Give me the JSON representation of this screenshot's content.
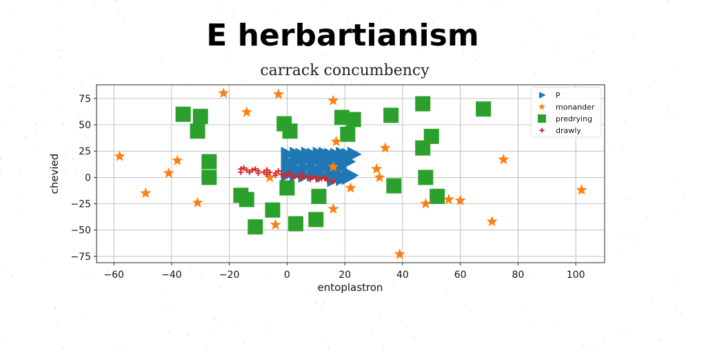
{
  "chart_data": {
    "type": "scatter",
    "title": "E herbartianism",
    "subtitle": "carrack concumbency",
    "xlabel": "entoplastron",
    "ylabel": "chevied",
    "xlim": [
      -66,
      110
    ],
    "ylim": [
      -81,
      88
    ],
    "xticks": [
      "−60",
      "−40",
      "−20",
      "0",
      "20",
      "40",
      "60",
      "80",
      "100"
    ],
    "yticks": [
      "−75",
      "−50",
      "−25",
      "0",
      "25",
      "50",
      "75"
    ],
    "grid": true,
    "legend_position": "top-right",
    "series": [
      {
        "name": "P",
        "marker": "triangle-right",
        "color": "#1f77b4",
        "points": [
          [
            0,
            22
          ],
          [
            3,
            22
          ],
          [
            5,
            21
          ],
          [
            7,
            22
          ],
          [
            9,
            21
          ],
          [
            11,
            22
          ],
          [
            13,
            22
          ],
          [
            15,
            21
          ],
          [
            17,
            21
          ],
          [
            19,
            22
          ],
          [
            21,
            21
          ],
          [
            23,
            22
          ],
          [
            0,
            15
          ],
          [
            3,
            15
          ],
          [
            6,
            16
          ],
          [
            9,
            15
          ],
          [
            12,
            15
          ],
          [
            15,
            14
          ],
          [
            18,
            15
          ],
          [
            21,
            15
          ],
          [
            0,
            9
          ],
          [
            3,
            8
          ],
          [
            6,
            9
          ],
          [
            9,
            8
          ],
          [
            12,
            9
          ],
          [
            15,
            8
          ],
          [
            18,
            9
          ],
          [
            0,
            3
          ],
          [
            3,
            3
          ],
          [
            6,
            2
          ],
          [
            9,
            3
          ],
          [
            12,
            2
          ],
          [
            15,
            3
          ],
          [
            18,
            2
          ],
          [
            21,
            2
          ],
          [
            16,
            -2
          ],
          [
            19,
            -1
          ],
          [
            21,
            0
          ],
          [
            22,
            2
          ]
        ]
      },
      {
        "name": "monander",
        "marker": "star",
        "color": "#ff7f0e",
        "points": [
          [
            -22,
            80
          ],
          [
            -3,
            79
          ],
          [
            16,
            73
          ],
          [
            -14,
            62
          ],
          [
            -58,
            20
          ],
          [
            -38,
            16
          ],
          [
            -41,
            4
          ],
          [
            -49,
            -15
          ],
          [
            -31,
            -24
          ],
          [
            17,
            34
          ],
          [
            34,
            28
          ],
          [
            31,
            8
          ],
          [
            32,
            0
          ],
          [
            16,
            10
          ],
          [
            -6,
            0
          ],
          [
            22,
            -10
          ],
          [
            16,
            -30
          ],
          [
            -4,
            -45
          ],
          [
            39,
            -73
          ],
          [
            48,
            -25
          ],
          [
            56,
            -21
          ],
          [
            60,
            -22
          ],
          [
            71,
            -42
          ],
          [
            75,
            17
          ],
          [
            102,
            -12
          ]
        ]
      },
      {
        "name": "predrying",
        "marker": "square",
        "color": "#2ca02c",
        "points": [
          [
            -36,
            60
          ],
          [
            -30,
            58
          ],
          [
            -31,
            44
          ],
          [
            -27,
            15
          ],
          [
            -27,
            0
          ],
          [
            -16,
            -17
          ],
          [
            -14,
            -21
          ],
          [
            -11,
            -47
          ],
          [
            -1,
            51
          ],
          [
            1,
            44
          ],
          [
            0,
            -10
          ],
          [
            -5,
            -31
          ],
          [
            3,
            -44
          ],
          [
            10,
            -40
          ],
          [
            11,
            -18
          ],
          [
            19,
            57
          ],
          [
            23,
            55
          ],
          [
            21,
            41
          ],
          [
            36,
            59
          ],
          [
            37,
            -8
          ],
          [
            47,
            70
          ],
          [
            47,
            28
          ],
          [
            50,
            39
          ],
          [
            48,
            0
          ],
          [
            52,
            -18
          ],
          [
            68,
            65
          ]
        ]
      },
      {
        "name": "drawly",
        "marker": "plus",
        "color": "#d62728",
        "points": [
          [
            -16,
            8
          ],
          [
            -14,
            7
          ],
          [
            -12,
            7
          ],
          [
            -10,
            6
          ],
          [
            -8,
            5
          ],
          [
            -6,
            5
          ],
          [
            -4,
            4
          ],
          [
            -2,
            3
          ],
          [
            0,
            3
          ],
          [
            2,
            2
          ],
          [
            4,
            1
          ],
          [
            6,
            1
          ],
          [
            8,
            0
          ],
          [
            10,
            -1
          ],
          [
            12,
            -1
          ],
          [
            14,
            -2
          ],
          [
            16,
            -3
          ],
          [
            -16,
            5
          ],
          [
            -13,
            5
          ],
          [
            -10,
            4
          ],
          [
            -7,
            3
          ],
          [
            -4,
            2
          ],
          [
            -1,
            1
          ],
          [
            2,
            0
          ],
          [
            5,
            -1
          ],
          [
            8,
            -2
          ],
          [
            11,
            -2
          ],
          [
            14,
            -3
          ],
          [
            -15,
            9
          ],
          [
            -11,
            8
          ],
          [
            -7,
            7
          ],
          [
            -3,
            6
          ],
          [
            1,
            4
          ],
          [
            5,
            3
          ],
          [
            9,
            1
          ],
          [
            13,
            0
          ],
          [
            16,
            -4
          ]
        ]
      }
    ]
  }
}
